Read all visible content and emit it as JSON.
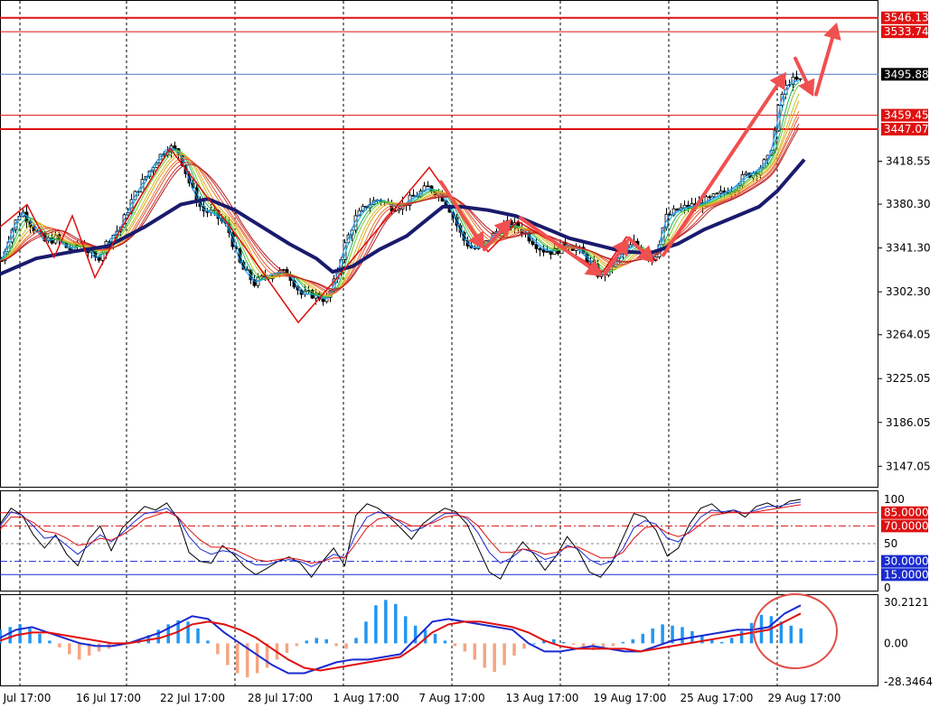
{
  "chart_data": [
    {
      "type": "candlestick",
      "panel": "price",
      "ylim": [
        3128,
        3562
      ],
      "y_ticks": [
        "3418.55",
        "3380.30",
        "3341.30",
        "3302.30",
        "3264.05",
        "3225.05",
        "3186.05",
        "3147.05"
      ],
      "price_lines": [
        {
          "label": "3546.13",
          "value": 3546.13,
          "style": "thick"
        },
        {
          "label": "3533.74",
          "value": 3533.74,
          "style": "thin"
        },
        {
          "label": "3495.88",
          "value": 3495.88,
          "style": "current"
        },
        {
          "label": "3459.45",
          "value": 3459.45,
          "style": "thin"
        },
        {
          "label": "3447.07",
          "value": 3447.07,
          "style": "thick"
        }
      ],
      "x_ticks": [
        "Jul 17:00",
        "16 Jul 17:00",
        "22 Jul 17:00",
        "28 Jul 17:00",
        "1 Aug 17:00",
        "7 Aug 17:00",
        "13 Aug 17:00",
        "19 Aug 17:00",
        "25 Aug 17:00",
        "29 Aug 17:00"
      ],
      "close_path": [
        [
          0,
          3330
        ],
        [
          10,
          3355
        ],
        [
          22,
          3375
        ],
        [
          35,
          3360
        ],
        [
          47,
          3347
        ],
        [
          60,
          3350
        ],
        [
          75,
          3340
        ],
        [
          90,
          3345
        ],
        [
          105,
          3330
        ],
        [
          118,
          3348
        ],
        [
          132,
          3360
        ],
        [
          145,
          3385
        ],
        [
          160,
          3405
        ],
        [
          172,
          3420
        ],
        [
          185,
          3432
        ],
        [
          197,
          3425
        ],
        [
          210,
          3395
        ],
        [
          222,
          3375
        ],
        [
          235,
          3372
        ],
        [
          250,
          3360
        ],
        [
          265,
          3325
        ],
        [
          280,
          3310
        ],
        [
          292,
          3316
        ],
        [
          305,
          3320
        ],
        [
          318,
          3318
        ],
        [
          332,
          3300
        ],
        [
          345,
          3300
        ],
        [
          360,
          3295
        ],
        [
          368,
          3310
        ],
        [
          378,
          3340
        ],
        [
          392,
          3368
        ],
        [
          405,
          3380
        ],
        [
          418,
          3385
        ],
        [
          432,
          3378
        ],
        [
          445,
          3380
        ],
        [
          458,
          3388
        ],
        [
          472,
          3395
        ],
        [
          485,
          3390
        ],
        [
          497,
          3375
        ],
        [
          510,
          3350
        ],
        [
          522,
          3340
        ],
        [
          535,
          3345
        ],
        [
          548,
          3356
        ],
        [
          560,
          3362
        ],
        [
          572,
          3360
        ],
        [
          585,
          3350
        ],
        [
          598,
          3340
        ],
        [
          612,
          3338
        ],
        [
          625,
          3345
        ],
        [
          638,
          3340
        ],
        [
          650,
          3330
        ],
        [
          663,
          3315
        ],
        [
          675,
          3325
        ],
        [
          688,
          3338
        ],
        [
          700,
          3345
        ],
        [
          712,
          3337
        ],
        [
          722,
          3330
        ],
        [
          735,
          3368
        ],
        [
          748,
          3375
        ],
        [
          760,
          3378
        ],
        [
          772,
          3380
        ],
        [
          785,
          3385
        ],
        [
          798,
          3390
        ],
        [
          810,
          3395
        ],
        [
          822,
          3405
        ],
        [
          835,
          3410
        ],
        [
          848,
          3420
        ],
        [
          855,
          3440
        ],
        [
          862,
          3475
        ],
        [
          872,
          3490
        ],
        [
          884,
          3490
        ]
      ],
      "main_ma": [
        [
          0,
          3318
        ],
        [
          40,
          3332
        ],
        [
          80,
          3338
        ],
        [
          120,
          3343
        ],
        [
          160,
          3360
        ],
        [
          200,
          3380
        ],
        [
          230,
          3385
        ],
        [
          260,
          3375
        ],
        [
          290,
          3360
        ],
        [
          320,
          3345
        ],
        [
          350,
          3332
        ],
        [
          368,
          3320
        ],
        [
          390,
          3325
        ],
        [
          420,
          3340
        ],
        [
          450,
          3352
        ],
        [
          470,
          3365
        ],
        [
          490,
          3378
        ],
        [
          510,
          3378
        ],
        [
          540,
          3375
        ],
        [
          570,
          3370
        ],
        [
          600,
          3360
        ],
        [
          630,
          3350
        ],
        [
          660,
          3344
        ],
        [
          690,
          3338
        ],
        [
          720,
          3337
        ],
        [
          750,
          3345
        ],
        [
          780,
          3358
        ],
        [
          810,
          3368
        ],
        [
          840,
          3378
        ],
        [
          860,
          3392
        ],
        [
          890,
          3420
        ]
      ],
      "zigzag": [
        [
          0,
          3360
        ],
        [
          30,
          3380
        ],
        [
          60,
          3333
        ],
        [
          80,
          3370
        ],
        [
          105,
          3315
        ],
        [
          130,
          3353
        ],
        [
          188,
          3430
        ],
        [
          264,
          3350
        ],
        [
          330,
          3275
        ],
        [
          370,
          3312
        ],
        [
          475,
          3413
        ],
        [
          540,
          3338
        ],
        [
          573,
          3365
        ],
        [
          667,
          3320
        ],
        [
          693,
          3351
        ],
        [
          727,
          3330
        ]
      ],
      "arrows": [
        [
          [
            488,
            3400
          ],
          [
            536,
            3340
          ]
        ],
        [
          [
            536,
            3340
          ],
          [
            566,
            3367
          ]
        ],
        [
          [
            576,
            3368
          ],
          [
            667,
            3316
          ]
        ],
        [
          [
            669,
            3318
          ],
          [
            696,
            3350
          ]
        ],
        [
          [
            696,
            3350
          ],
          [
            724,
            3328
          ]
        ],
        [
          [
            734,
            3335
          ],
          [
            870,
            3498
          ]
        ],
        [
          [
            880,
            3510
          ],
          [
            900,
            3476
          ]
        ],
        [
          [
            903,
            3478
          ],
          [
            926,
            3542
          ]
        ]
      ]
    },
    {
      "type": "line",
      "panel": "stochastic",
      "ylim": [
        0,
        100
      ],
      "y_ticks": [
        "100",
        "50",
        "0"
      ],
      "levels": [
        {
          "label": "85.0000",
          "value": 85,
          "color": "#dd1111"
        },
        {
          "label": "70.0000",
          "value": 70,
          "color": "#dd1111"
        },
        {
          "label": "30.0000",
          "value": 30,
          "color": "#1a2bd0"
        },
        {
          "label": "15.0000",
          "value": 15,
          "color": "#1a2bd0"
        }
      ],
      "series": [
        {
          "values": [
            72,
            90,
            82,
            60,
            45,
            60,
            38,
            25,
            55,
            70,
            42,
            68,
            80,
            92,
            88,
            96,
            78,
            40,
            30,
            28,
            48,
            38,
            24,
            15,
            22,
            30,
            35,
            28,
            12,
            30,
            45,
            25,
            82,
            95,
            90,
            80,
            68,
            55,
            72,
            82,
            90,
            86,
            72,
            45,
            18,
            10,
            35,
            52,
            38,
            20,
            36,
            58,
            42,
            18,
            12,
            28,
            56,
            84,
            80,
            65,
            36,
            45,
            72,
            90,
            95,
            84,
            88,
            80,
            92,
            96,
            90,
            98,
            100
          ]
        },
        {
          "values": [
            70,
            86,
            82,
            70,
            56,
            58,
            48,
            38,
            48,
            60,
            52,
            62,
            74,
            84,
            86,
            90,
            80,
            58,
            44,
            38,
            42,
            40,
            32,
            26,
            26,
            30,
            32,
            30,
            24,
            30,
            38,
            34,
            60,
            80,
            86,
            82,
            74,
            64,
            68,
            76,
            84,
            84,
            78,
            62,
            40,
            28,
            34,
            44,
            40,
            32,
            36,
            48,
            44,
            32,
            26,
            30,
            44,
            68,
            76,
            72,
            56,
            52,
            64,
            80,
            88,
            86,
            88,
            84,
            88,
            92,
            92,
            95,
            97
          ]
        },
        {
          "values": [
            66,
            80,
            80,
            74,
            64,
            62,
            56,
            48,
            50,
            56,
            54,
            60,
            68,
            78,
            82,
            86,
            80,
            66,
            54,
            46,
            46,
            44,
            38,
            32,
            30,
            32,
            34,
            32,
            28,
            30,
            34,
            34,
            50,
            68,
            78,
            80,
            76,
            70,
            70,
            74,
            80,
            82,
            80,
            70,
            54,
            40,
            40,
            44,
            42,
            38,
            40,
            46,
            46,
            40,
            34,
            34,
            40,
            56,
            68,
            70,
            62,
            58,
            62,
            72,
            82,
            84,
            86,
            84,
            86,
            88,
            90,
            92,
            94
          ]
        }
      ]
    },
    {
      "type": "bar+line",
      "panel": "macd",
      "ylim": [
        -28.3464,
        30.2121
      ],
      "y_ticks": [
        "30.2121",
        "0.00",
        "-28.3464"
      ],
      "histogram": [
        10,
        12,
        14,
        11,
        7,
        2,
        -3,
        -8,
        -12,
        -9,
        -6,
        -4,
        -2,
        1,
        3,
        6,
        10,
        14,
        17,
        16,
        11,
        2,
        -8,
        -16,
        -22,
        -25,
        -22,
        -18,
        -12,
        -7,
        -2,
        2,
        4,
        3,
        -2,
        -4,
        4,
        16,
        28,
        32,
        29,
        20,
        13,
        10,
        7,
        2,
        -2,
        -6,
        -12,
        -18,
        -21,
        -16,
        -9,
        -4,
        0,
        2,
        3,
        1,
        -1,
        -3,
        -5,
        -4,
        -2,
        1,
        3,
        7,
        11,
        14,
        13,
        12,
        9,
        6,
        3,
        1,
        4,
        9,
        15,
        21,
        20,
        16,
        13,
        11
      ],
      "series": [
        {
          "name": "",
          "values": [
            4,
            10,
            12,
            8,
            4,
            0,
            -2,
            -2,
            0,
            4,
            8,
            14,
            20,
            18,
            8,
            0,
            -8,
            -16,
            -22,
            -22,
            -18,
            -14,
            -12,
            -12,
            -10,
            -8,
            4,
            16,
            18,
            16,
            14,
            12,
            10,
            0,
            -6,
            -6,
            -4,
            -2,
            -4,
            -6,
            -6,
            -2,
            2,
            4,
            6,
            8,
            10,
            10,
            12,
            22,
            28
          ]
        },
        {
          "name": "",
          "values": [
            2,
            6,
            8,
            8,
            6,
            4,
            2,
            0,
            0,
            2,
            4,
            8,
            14,
            16,
            14,
            10,
            4,
            -4,
            -12,
            -18,
            -20,
            -18,
            -16,
            -14,
            -12,
            -10,
            -2,
            8,
            14,
            16,
            16,
            14,
            12,
            8,
            2,
            -2,
            -4,
            -4,
            -4,
            -4,
            -6,
            -4,
            -2,
            0,
            2,
            4,
            6,
            8,
            10,
            16,
            22
          ]
        }
      ]
    }
  ]
}
